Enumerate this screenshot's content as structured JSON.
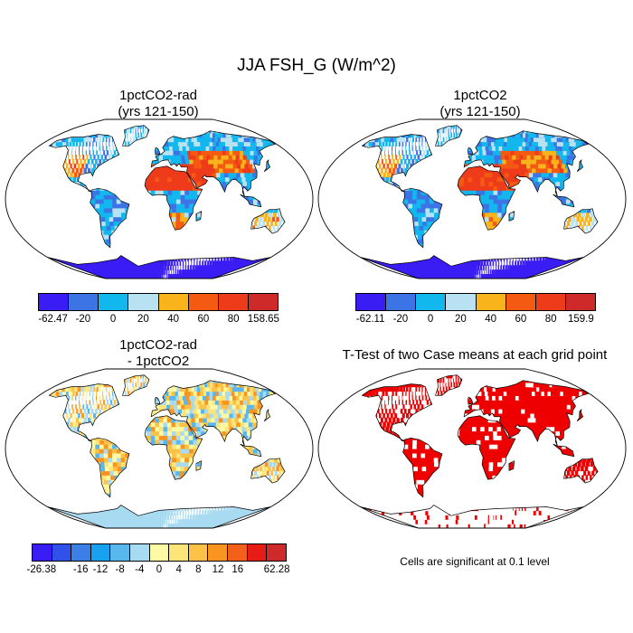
{
  "figure": {
    "title": "JJA FSH_G (W/m^2)"
  },
  "panels": [
    {
      "id": "p1",
      "title": "1pctCO2-rad\n(yrs 121-150)",
      "colorbar": {
        "colors": [
          "#3a1df5",
          "#3c74e6",
          "#12b7ee",
          "#b8e2f2",
          "#f8b41a",
          "#f45a12",
          "#ee3b1a",
          "#cf2a2a"
        ],
        "labels": [
          "-62.47",
          "-20",
          "0",
          "20",
          "40",
          "60",
          "80",
          "158.65"
        ]
      }
    },
    {
      "id": "p2",
      "title": "1pctCO2\n(yrs 121-150)",
      "colorbar": {
        "colors": [
          "#3a1df5",
          "#3c74e6",
          "#12b7ee",
          "#b8e2f2",
          "#f8b41a",
          "#f45a12",
          "#ee3b1a",
          "#cf2a2a"
        ],
        "labels": [
          "-62.11",
          "-20",
          "0",
          "20",
          "40",
          "60",
          "80",
          "159.9"
        ]
      }
    },
    {
      "id": "p3",
      "title": "1pctCO2-rad\n- 1pctCO2",
      "colorbar": {
        "colors": [
          "#3a1df5",
          "#3050ea",
          "#3a7ee6",
          "#16a2ee",
          "#58b8ee",
          "#a8daf2",
          "#fdf9a4",
          "#fde57a",
          "#fcc248",
          "#f89420",
          "#f2601a",
          "#e81c16",
          "#cf2a2a"
        ],
        "labels": [
          "-26.38",
          "",
          "-16",
          "-12",
          "-8",
          "-4",
          "0",
          "4",
          "8",
          "12",
          "16",
          "",
          "62.28"
        ]
      }
    },
    {
      "id": "p4",
      "title": "T-Test of two Case means at each grid point"
    }
  ],
  "footnote": "Cells are significant at 0.1 level",
  "colors": {
    "significant": "#ee0000",
    "coast": "#000000",
    "ocean": "#ffffff"
  }
}
